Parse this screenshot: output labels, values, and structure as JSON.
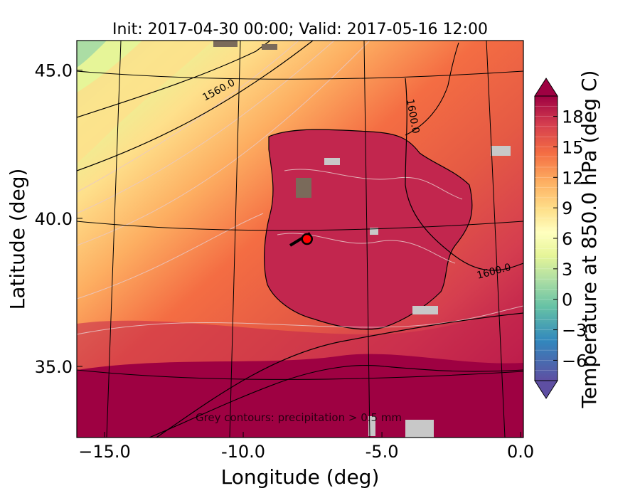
{
  "chart_data": {
    "type": "heatmap",
    "title": "Init: 2017-04-30 00:00; Valid: 2017-05-16 12:00",
    "xlabel": "Longitude (deg)",
    "ylabel": "Latitude (deg)",
    "xlim": [
      -16.0,
      0.1
    ],
    "ylim": [
      32.6,
      46.0
    ],
    "x_ticks": [
      -15.0,
      -10.0,
      -5.0,
      0.0
    ],
    "x_tick_labels": [
      "−15.0",
      "-10.0",
      "-5.0",
      "0.0"
    ],
    "y_ticks": [
      35.0,
      40.0,
      45.0
    ],
    "y_tick_labels": [
      "35.0",
      "40.0",
      "45.0"
    ],
    "colorbar": {
      "label": "Temperature at 850.0 hPa (deg C)",
      "min": -8,
      "max": 20,
      "step": 1,
      "extend": "both",
      "ticks": [
        -6,
        -3,
        0,
        3,
        6,
        9,
        12,
        15,
        18
      ],
      "tick_labels": [
        "−6",
        "−3",
        "0",
        "3",
        "6",
        "9",
        "12",
        "15",
        "18"
      ],
      "colormap": "Spectral_r"
    },
    "contour_labels": [
      "1560.0",
      "1600.0",
      "1600.0"
    ],
    "annotation": "Grey contours: precipitation > 0.5 mm",
    "marker": {
      "lon": -7.7,
      "lat": 39.3,
      "color": "#ff0000"
    },
    "grid": true
  },
  "colors": {
    "cold": "#5e4fa2",
    "cool": "#3288bd",
    "mild": "#abdda4",
    "neutral": "#ffffbf",
    "warm": "#fdae61",
    "hot": "#d53e4f",
    "hottest": "#9e0142"
  }
}
